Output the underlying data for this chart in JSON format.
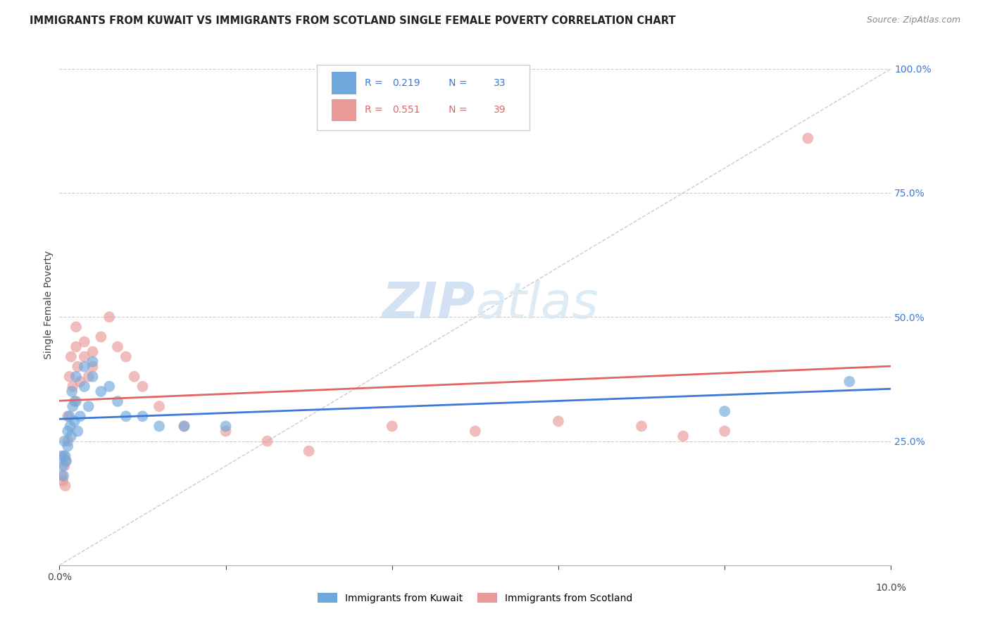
{
  "title": "IMMIGRANTS FROM KUWAIT VS IMMIGRANTS FROM SCOTLAND SINGLE FEMALE POVERTY CORRELATION CHART",
  "source": "Source: ZipAtlas.com",
  "ylabel": "Single Female Poverty",
  "R_kuwait": 0.219,
  "N_kuwait": 33,
  "R_scotland": 0.551,
  "N_scotland": 39,
  "color_kuwait": "#6fa8dc",
  "color_scotland": "#ea9999",
  "line_color_kuwait": "#3c78d8",
  "line_color_scotland": "#e06666",
  "xlim": [
    0.0,
    0.1
  ],
  "ylim": [
    0.0,
    1.05
  ],
  "kuwait_x": [
    0.0003,
    0.0004,
    0.0005,
    0.0006,
    0.0007,
    0.0008,
    0.001,
    0.001,
    0.0012,
    0.0013,
    0.0014,
    0.0015,
    0.0016,
    0.0018,
    0.002,
    0.002,
    0.0022,
    0.0025,
    0.003,
    0.003,
    0.0035,
    0.004,
    0.004,
    0.005,
    0.006,
    0.007,
    0.008,
    0.01,
    0.012,
    0.015,
    0.02,
    0.08,
    0.095
  ],
  "kuwait_y": [
    0.22,
    0.2,
    0.18,
    0.25,
    0.22,
    0.21,
    0.27,
    0.24,
    0.3,
    0.28,
    0.26,
    0.35,
    0.32,
    0.29,
    0.38,
    0.33,
    0.27,
    0.3,
    0.4,
    0.36,
    0.32,
    0.41,
    0.38,
    0.35,
    0.36,
    0.33,
    0.3,
    0.3,
    0.28,
    0.28,
    0.28,
    0.31,
    0.37
  ],
  "scotland_x": [
    0.0003,
    0.0004,
    0.0005,
    0.0006,
    0.0007,
    0.0008,
    0.001,
    0.001,
    0.0012,
    0.0014,
    0.0016,
    0.0018,
    0.002,
    0.002,
    0.0022,
    0.0025,
    0.003,
    0.003,
    0.0035,
    0.004,
    0.004,
    0.005,
    0.006,
    0.007,
    0.008,
    0.009,
    0.01,
    0.012,
    0.015,
    0.02,
    0.025,
    0.03,
    0.04,
    0.05,
    0.06,
    0.07,
    0.075,
    0.08,
    0.09
  ],
  "scotland_y": [
    0.18,
    0.17,
    0.22,
    0.2,
    0.16,
    0.21,
    0.3,
    0.25,
    0.38,
    0.42,
    0.36,
    0.33,
    0.48,
    0.44,
    0.4,
    0.37,
    0.45,
    0.42,
    0.38,
    0.43,
    0.4,
    0.46,
    0.5,
    0.44,
    0.42,
    0.38,
    0.36,
    0.32,
    0.28,
    0.27,
    0.25,
    0.23,
    0.28,
    0.27,
    0.29,
    0.28,
    0.26,
    0.27,
    0.86
  ]
}
